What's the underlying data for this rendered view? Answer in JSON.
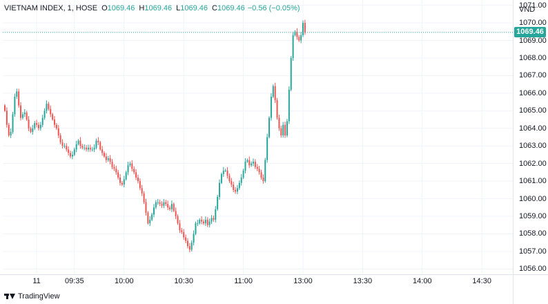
{
  "legend": {
    "symbol": "VIETNAM INDEX, 1, HOSE",
    "open_label": "O",
    "open": "1069.46",
    "high_label": "H",
    "high": "1069.46",
    "low_label": "L",
    "low": "1069.46",
    "close_label": "C",
    "close": "1069.46",
    "change": "−0.56 (−0.05%)"
  },
  "currency": "VND",
  "last_price_label": "1069.46",
  "brand": "TradingView",
  "colors": {
    "up": "#26a69a",
    "down": "#ef5350",
    "grid": "#f0f3fa"
  },
  "chart_data": {
    "type": "candlestick",
    "ylim": [
      1055.7,
      1071.3
    ],
    "y_ticks": [
      1056,
      1057,
      1058,
      1059,
      1060,
      1061,
      1062,
      1063,
      1064,
      1065,
      1066,
      1067,
      1068,
      1069,
      1070,
      1071
    ],
    "y_tick_labels": [
      "1056.00",
      "1057.00",
      "1058.00",
      "1059.00",
      "1060.00",
      "1061.00",
      "1062.00",
      "1063.00",
      "1064.00",
      "1065.00",
      "1066.00",
      "1067.00",
      "1068.00",
      "1069.00",
      "1070.00",
      "1071.00"
    ],
    "x_ticks": [
      {
        "label": "11",
        "bar": 16
      },
      {
        "label": "09:35",
        "bar": 35
      },
      {
        "label": "10:00",
        "bar": 60
      },
      {
        "label": "10:30",
        "bar": 90
      },
      {
        "label": "11:00",
        "bar": 120
      },
      {
        "label": "13:00",
        "bar": 150
      },
      {
        "label": "13:30",
        "bar": 180
      },
      {
        "label": "14:00",
        "bar": 210
      },
      {
        "label": "14:30",
        "bar": 240
      }
    ],
    "last_price": 1069.46,
    "closes": [
      1065.0,
      1064.2,
      1063.6,
      1063.8,
      1064.8,
      1065.8,
      1066.1,
      1065.3,
      1064.6,
      1064.8,
      1064.9,
      1064.5,
      1064.0,
      1063.8,
      1064.0,
      1064.3,
      1064.2,
      1064.0,
      1064.2,
      1064.6,
      1065.0,
      1065.4,
      1065.1,
      1064.8,
      1064.5,
      1064.2,
      1064.0,
      1063.6,
      1063.2,
      1063.0,
      1063.0,
      1062.8,
      1062.6,
      1062.4,
      1062.5,
      1062.8,
      1063.1,
      1063.3,
      1063.0,
      1062.9,
      1062.9,
      1062.8,
      1062.9,
      1062.8,
      1062.8,
      1062.9,
      1063.3,
      1063.2,
      1062.8,
      1062.6,
      1062.4,
      1062.2,
      1062.3,
      1062.1,
      1061.8,
      1061.7,
      1061.5,
      1061.2,
      1060.9,
      1060.8,
      1061.1,
      1061.5,
      1061.9,
      1062.0,
      1061.7,
      1061.5,
      1061.2,
      1061.0,
      1060.6,
      1060.3,
      1059.8,
      1059.2,
      1058.6,
      1058.8,
      1059.1,
      1059.5,
      1059.8,
      1059.8,
      1059.7,
      1059.6,
      1059.8,
      1059.7,
      1059.5,
      1059.4,
      1059.7,
      1059.3,
      1059.0,
      1058.6,
      1058.2,
      1058.1,
      1057.8,
      1057.6,
      1057.3,
      1057.1,
      1057.5,
      1058.0,
      1058.6,
      1058.6,
      1058.8,
      1058.7,
      1058.6,
      1058.8,
      1058.5,
      1058.7,
      1058.9,
      1058.8,
      1059.4,
      1060.1,
      1060.9,
      1061.4,
      1061.6,
      1061.6,
      1061.3,
      1061.0,
      1060.8,
      1060.5,
      1060.4,
      1060.6,
      1060.9,
      1061.2,
      1061.6,
      1062.1,
      1062.2,
      1061.9,
      1062.0,
      1062.1,
      1061.8,
      1061.7,
      1061.5,
      1061.2,
      1061.0,
      1062.2,
      1063.5,
      1064.6,
      1065.8,
      1066.4,
      1065.6,
      1064.6,
      1064.0,
      1063.6,
      1064.2,
      1063.6,
      1064.4,
      1066.2,
      1068.0,
      1069.3,
      1069.5,
      1069.2,
      1069.0,
      1069.3,
      1070.0,
      1069.46
    ],
    "t_start": "09:15",
    "t_step_minutes": 1
  }
}
